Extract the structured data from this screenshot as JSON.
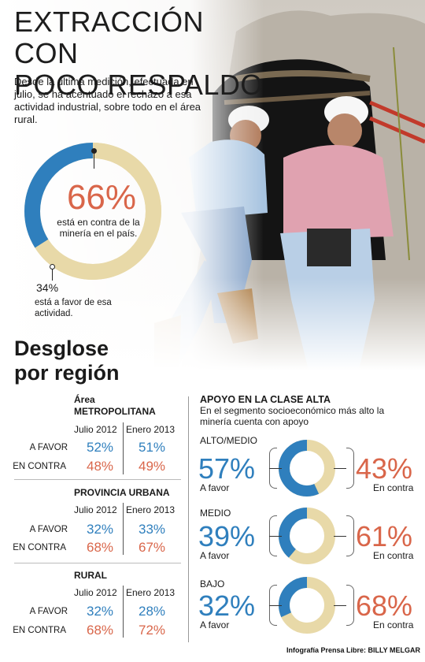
{
  "header": {
    "title_line1": "EXTRACCIÓN CON",
    "title_line2": "POCO RESPALDO",
    "intro": "Desde la última medición, efectuada en julio, se ha acentuado el rechazo a esa actividad industrial, sobre todo en el área rural."
  },
  "main": {
    "contra_pct": "66%",
    "contra_caption": "está en contra de la minería en el país.",
    "favor_pct": "34%",
    "favor_caption": "está a favor de esa actividad."
  },
  "regions": {
    "section_title_line1": "Desglose",
    "section_title_line2": "por región",
    "col1": "Julio 2012",
    "col2": "Enero 2013",
    "favor_label": "A FAVOR",
    "contra_label": "EN CONTRA",
    "items": [
      {
        "name_line1": "Área",
        "name_line2": "METROPOLITANA",
        "favor": [
          "52%",
          "51%"
        ],
        "contra": [
          "48%",
          "49%"
        ]
      },
      {
        "name_line1": "PROVINCIA URBANA",
        "name_line2": "",
        "favor": [
          "32%",
          "33%"
        ],
        "contra": [
          "68%",
          "67%"
        ]
      },
      {
        "name_line1": "RURAL",
        "name_line2": "",
        "favor": [
          "32%",
          "28%"
        ],
        "contra": [
          "68%",
          "72%"
        ]
      }
    ]
  },
  "upper": {
    "title": "APOYO EN LA CLASE ALTA",
    "subtitle": "En el segmento socioeconómico más alto la minería cuenta con apoyo",
    "favor_label": "A favor",
    "contra_label": "En contra",
    "segments": [
      {
        "name": "ALTO/MEDIO",
        "favor": "57%",
        "contra": "43%"
      },
      {
        "name": "MEDIO",
        "favor": "39%",
        "contra": "61%"
      },
      {
        "name": "BAJO",
        "favor": "32%",
        "contra": "68%"
      }
    ]
  },
  "credit": "Infografía Prensa Libre: BILLY MELGAR",
  "colors": {
    "favor": "#2f7fbd",
    "contra": "#e8d9a8",
    "contra_text": "#d9664a"
  },
  "chart_data": [
    {
      "type": "pie",
      "categories": [
        "En contra",
        "A favor"
      ],
      "values": [
        66,
        34
      ]
    },
    {
      "type": "table",
      "categories": [
        "Área METROPOLITANA",
        "PROVINCIA URBANA",
        "RURAL"
      ],
      "x": [
        "Julio 2012",
        "Enero 2013"
      ],
      "series": [
        {
          "name": "A FAVOR",
          "values": [
            [
              52,
              51
            ],
            [
              32,
              33
            ],
            [
              32,
              28
            ]
          ]
        },
        {
          "name": "EN CONTRA",
          "values": [
            [
              48,
              49
            ],
            [
              68,
              67
            ],
            [
              68,
              72
            ]
          ]
        }
      ]
    },
    {
      "type": "pie",
      "title": "APOYO EN LA CLASE ALTA",
      "categories": [
        "ALTO/MEDIO",
        "MEDIO",
        "BAJO"
      ],
      "series": [
        {
          "name": "A favor",
          "values": [
            57,
            39,
            32
          ]
        },
        {
          "name": "En contra",
          "values": [
            43,
            61,
            68
          ]
        }
      ]
    }
  ]
}
